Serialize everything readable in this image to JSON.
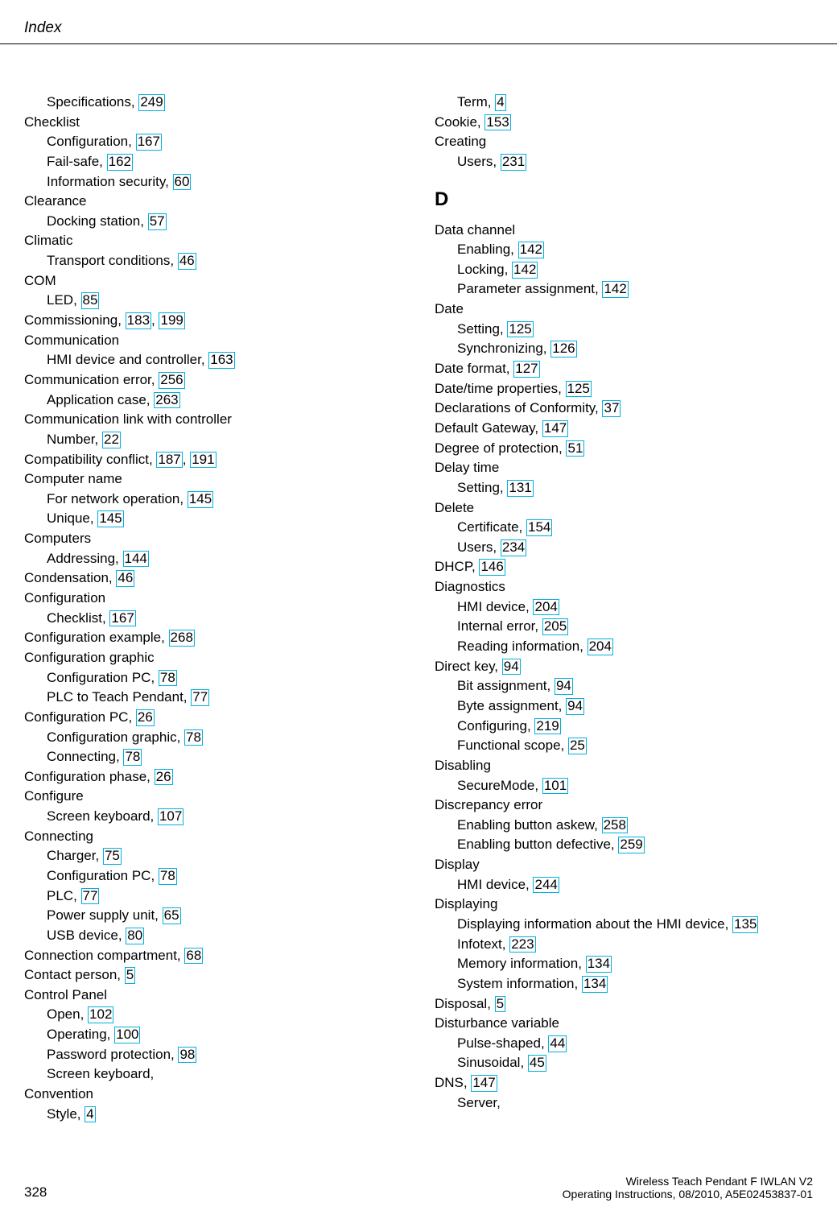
{
  "header": {
    "title": "Index"
  },
  "footer": {
    "page_number": "328",
    "doc_title": "Wireless Teach Pendant F IWLAN V2",
    "doc_info": "Operating Instructions, 08/2010, A5E02453837-01"
  },
  "link_border_color": "#00b0e0",
  "columns": {
    "left": [
      {
        "type": "sub",
        "text": "Specifications, ",
        "links": [
          "249"
        ]
      },
      {
        "type": "main",
        "text": "Checklist"
      },
      {
        "type": "sub",
        "text": "Configuration, ",
        "links": [
          "167"
        ]
      },
      {
        "type": "sub",
        "text": "Fail-safe, ",
        "links": [
          "162"
        ]
      },
      {
        "type": "sub",
        "text": "Information security, ",
        "links": [
          "60"
        ]
      },
      {
        "type": "main",
        "text": "Clearance"
      },
      {
        "type": "sub",
        "text": "Docking station, ",
        "links": [
          "57"
        ]
      },
      {
        "type": "main",
        "text": "Climatic"
      },
      {
        "type": "sub",
        "text": "Transport conditions, ",
        "links": [
          "46"
        ]
      },
      {
        "type": "main",
        "text": "COM"
      },
      {
        "type": "sub",
        "text": "LED, ",
        "links": [
          "85"
        ]
      },
      {
        "type": "main",
        "text": "Commissioning, ",
        "links": [
          "183",
          "199"
        ]
      },
      {
        "type": "main",
        "text": "Communication"
      },
      {
        "type": "sub",
        "text": "HMI device and controller, ",
        "links": [
          "163"
        ]
      },
      {
        "type": "main",
        "text": "Communication error, ",
        "links": [
          "256"
        ]
      },
      {
        "type": "sub",
        "text": "Application case, ",
        "links": [
          "263"
        ]
      },
      {
        "type": "main",
        "text": "Communication link with controller"
      },
      {
        "type": "sub",
        "text": "Number, ",
        "links": [
          "22"
        ]
      },
      {
        "type": "main",
        "text": "Compatibility conflict, ",
        "links": [
          "187",
          "191"
        ]
      },
      {
        "type": "main",
        "text": "Computer name"
      },
      {
        "type": "sub",
        "text": "For network operation, ",
        "links": [
          "145"
        ]
      },
      {
        "type": "sub",
        "text": "Unique, ",
        "links": [
          "145"
        ]
      },
      {
        "type": "main",
        "text": "Computers"
      },
      {
        "type": "sub",
        "text": "Addressing, ",
        "links": [
          "144"
        ]
      },
      {
        "type": "main",
        "text": "Condensation, ",
        "links": [
          "46"
        ]
      },
      {
        "type": "main",
        "text": "Configuration"
      },
      {
        "type": "sub",
        "text": "Checklist, ",
        "links": [
          "167"
        ]
      },
      {
        "type": "main",
        "text": "Configuration example, ",
        "links": [
          "268"
        ]
      },
      {
        "type": "main",
        "text": "Configuration graphic"
      },
      {
        "type": "sub",
        "text": "Configuration PC, ",
        "links": [
          "78"
        ]
      },
      {
        "type": "sub",
        "text": "PLC to Teach Pendant, ",
        "links": [
          "77"
        ]
      },
      {
        "type": "main",
        "text": "Configuration PC, ",
        "links": [
          "26"
        ]
      },
      {
        "type": "sub",
        "text": "Configuration graphic, ",
        "links": [
          "78"
        ]
      },
      {
        "type": "sub",
        "text": "Connecting, ",
        "links": [
          "78"
        ]
      },
      {
        "type": "main",
        "text": "Configuration phase, ",
        "links": [
          "26"
        ]
      },
      {
        "type": "main",
        "text": "Configure"
      },
      {
        "type": "sub",
        "text": "Screen keyboard, ",
        "links": [
          "107"
        ]
      },
      {
        "type": "main",
        "text": "Connecting"
      },
      {
        "type": "sub",
        "text": "Charger, ",
        "links": [
          "75"
        ]
      },
      {
        "type": "sub",
        "text": "Configuration PC, ",
        "links": [
          "78"
        ]
      },
      {
        "type": "sub",
        "text": "PLC, ",
        "links": [
          "77"
        ]
      },
      {
        "type": "sub",
        "text": "Power supply unit, ",
        "links": [
          "65"
        ]
      },
      {
        "type": "sub",
        "text": "USB device, ",
        "links": [
          "80"
        ]
      },
      {
        "type": "main",
        "text": "Connection compartment, ",
        "links": [
          "68"
        ]
      },
      {
        "type": "main",
        "text": "Contact person, ",
        "links": [
          "5"
        ]
      },
      {
        "type": "main",
        "text": "Control Panel"
      },
      {
        "type": "sub",
        "text": "Open, ",
        "links": [
          "102"
        ]
      },
      {
        "type": "sub",
        "text": "Operating, ",
        "links": [
          "100"
        ]
      },
      {
        "type": "sub",
        "text": "Password protection, ",
        "links": [
          "98"
        ]
      },
      {
        "type": "sub",
        "text": "Screen keyboard,"
      },
      {
        "type": "main",
        "text": "Convention"
      },
      {
        "type": "sub",
        "text": "Style, ",
        "links": [
          "4"
        ]
      }
    ],
    "right": [
      {
        "type": "sub",
        "text": "Term, ",
        "links": [
          "4"
        ]
      },
      {
        "type": "main",
        "text": "Cookie, ",
        "links": [
          "153"
        ]
      },
      {
        "type": "main",
        "text": "Creating"
      },
      {
        "type": "sub",
        "text": "Users, ",
        "links": [
          "231"
        ]
      },
      {
        "type": "letter",
        "text": "D"
      },
      {
        "type": "main",
        "text": "Data channel"
      },
      {
        "type": "sub",
        "text": "Enabling, ",
        "links": [
          "142"
        ]
      },
      {
        "type": "sub",
        "text": "Locking, ",
        "links": [
          "142"
        ]
      },
      {
        "type": "sub",
        "text": "Parameter assignment, ",
        "links": [
          "142"
        ]
      },
      {
        "type": "main",
        "text": "Date"
      },
      {
        "type": "sub",
        "text": "Setting, ",
        "links": [
          "125"
        ]
      },
      {
        "type": "sub",
        "text": "Synchronizing, ",
        "links": [
          "126"
        ]
      },
      {
        "type": "main",
        "text": "Date format, ",
        "links": [
          "127"
        ]
      },
      {
        "type": "main",
        "text": "Date/time properties, ",
        "links": [
          "125"
        ]
      },
      {
        "type": "main",
        "text": "Declarations of Conformity, ",
        "links": [
          "37"
        ]
      },
      {
        "type": "main",
        "text": "Default Gateway, ",
        "links": [
          "147"
        ]
      },
      {
        "type": "main",
        "text": "Degree of protection, ",
        "links": [
          "51"
        ]
      },
      {
        "type": "main",
        "text": "Delay time"
      },
      {
        "type": "sub",
        "text": "Setting, ",
        "links": [
          "131"
        ]
      },
      {
        "type": "main",
        "text": "Delete"
      },
      {
        "type": "sub",
        "text": "Certificate, ",
        "links": [
          "154"
        ]
      },
      {
        "type": "sub",
        "text": "Users, ",
        "links": [
          "234"
        ]
      },
      {
        "type": "main",
        "text": "DHCP, ",
        "links": [
          "146"
        ]
      },
      {
        "type": "main",
        "text": "Diagnostics"
      },
      {
        "type": "sub",
        "text": "HMI device, ",
        "links": [
          "204"
        ]
      },
      {
        "type": "sub",
        "text": "Internal error, ",
        "links": [
          "205"
        ]
      },
      {
        "type": "sub",
        "text": "Reading information, ",
        "links": [
          "204"
        ]
      },
      {
        "type": "main",
        "text": "Direct key, ",
        "links": [
          "94"
        ]
      },
      {
        "type": "sub",
        "text": "Bit assignment, ",
        "links": [
          "94"
        ]
      },
      {
        "type": "sub",
        "text": "Byte assignment, ",
        "links": [
          "94"
        ]
      },
      {
        "type": "sub",
        "text": "Configuring, ",
        "links": [
          "219"
        ]
      },
      {
        "type": "sub",
        "text": "Functional scope, ",
        "links": [
          "25"
        ]
      },
      {
        "type": "main",
        "text": "Disabling"
      },
      {
        "type": "sub",
        "text": "SecureMode, ",
        "links": [
          "101"
        ]
      },
      {
        "type": "main",
        "text": "Discrepancy error"
      },
      {
        "type": "sub",
        "text": "Enabling button askew, ",
        "links": [
          "258"
        ]
      },
      {
        "type": "sub",
        "text": "Enabling button defective, ",
        "links": [
          "259"
        ]
      },
      {
        "type": "main",
        "text": "Display"
      },
      {
        "type": "sub",
        "text": "HMI device, ",
        "links": [
          "244"
        ]
      },
      {
        "type": "main",
        "text": "Displaying"
      },
      {
        "type": "sub",
        "text": "Displaying information about the HMI device, ",
        "links": [
          "135"
        ]
      },
      {
        "type": "sub",
        "text": "Infotext, ",
        "links": [
          "223"
        ]
      },
      {
        "type": "sub",
        "text": "Memory information, ",
        "links": [
          "134"
        ]
      },
      {
        "type": "sub",
        "text": "System information, ",
        "links": [
          "134"
        ]
      },
      {
        "type": "main",
        "text": "Disposal, ",
        "links": [
          "5"
        ]
      },
      {
        "type": "main",
        "text": "Disturbance variable"
      },
      {
        "type": "sub",
        "text": "Pulse-shaped, ",
        "links": [
          "44"
        ]
      },
      {
        "type": "sub",
        "text": "Sinusoidal, ",
        "links": [
          "45"
        ]
      },
      {
        "type": "main",
        "text": "DNS, ",
        "links": [
          "147"
        ]
      },
      {
        "type": "sub",
        "text": "Server,"
      }
    ]
  }
}
